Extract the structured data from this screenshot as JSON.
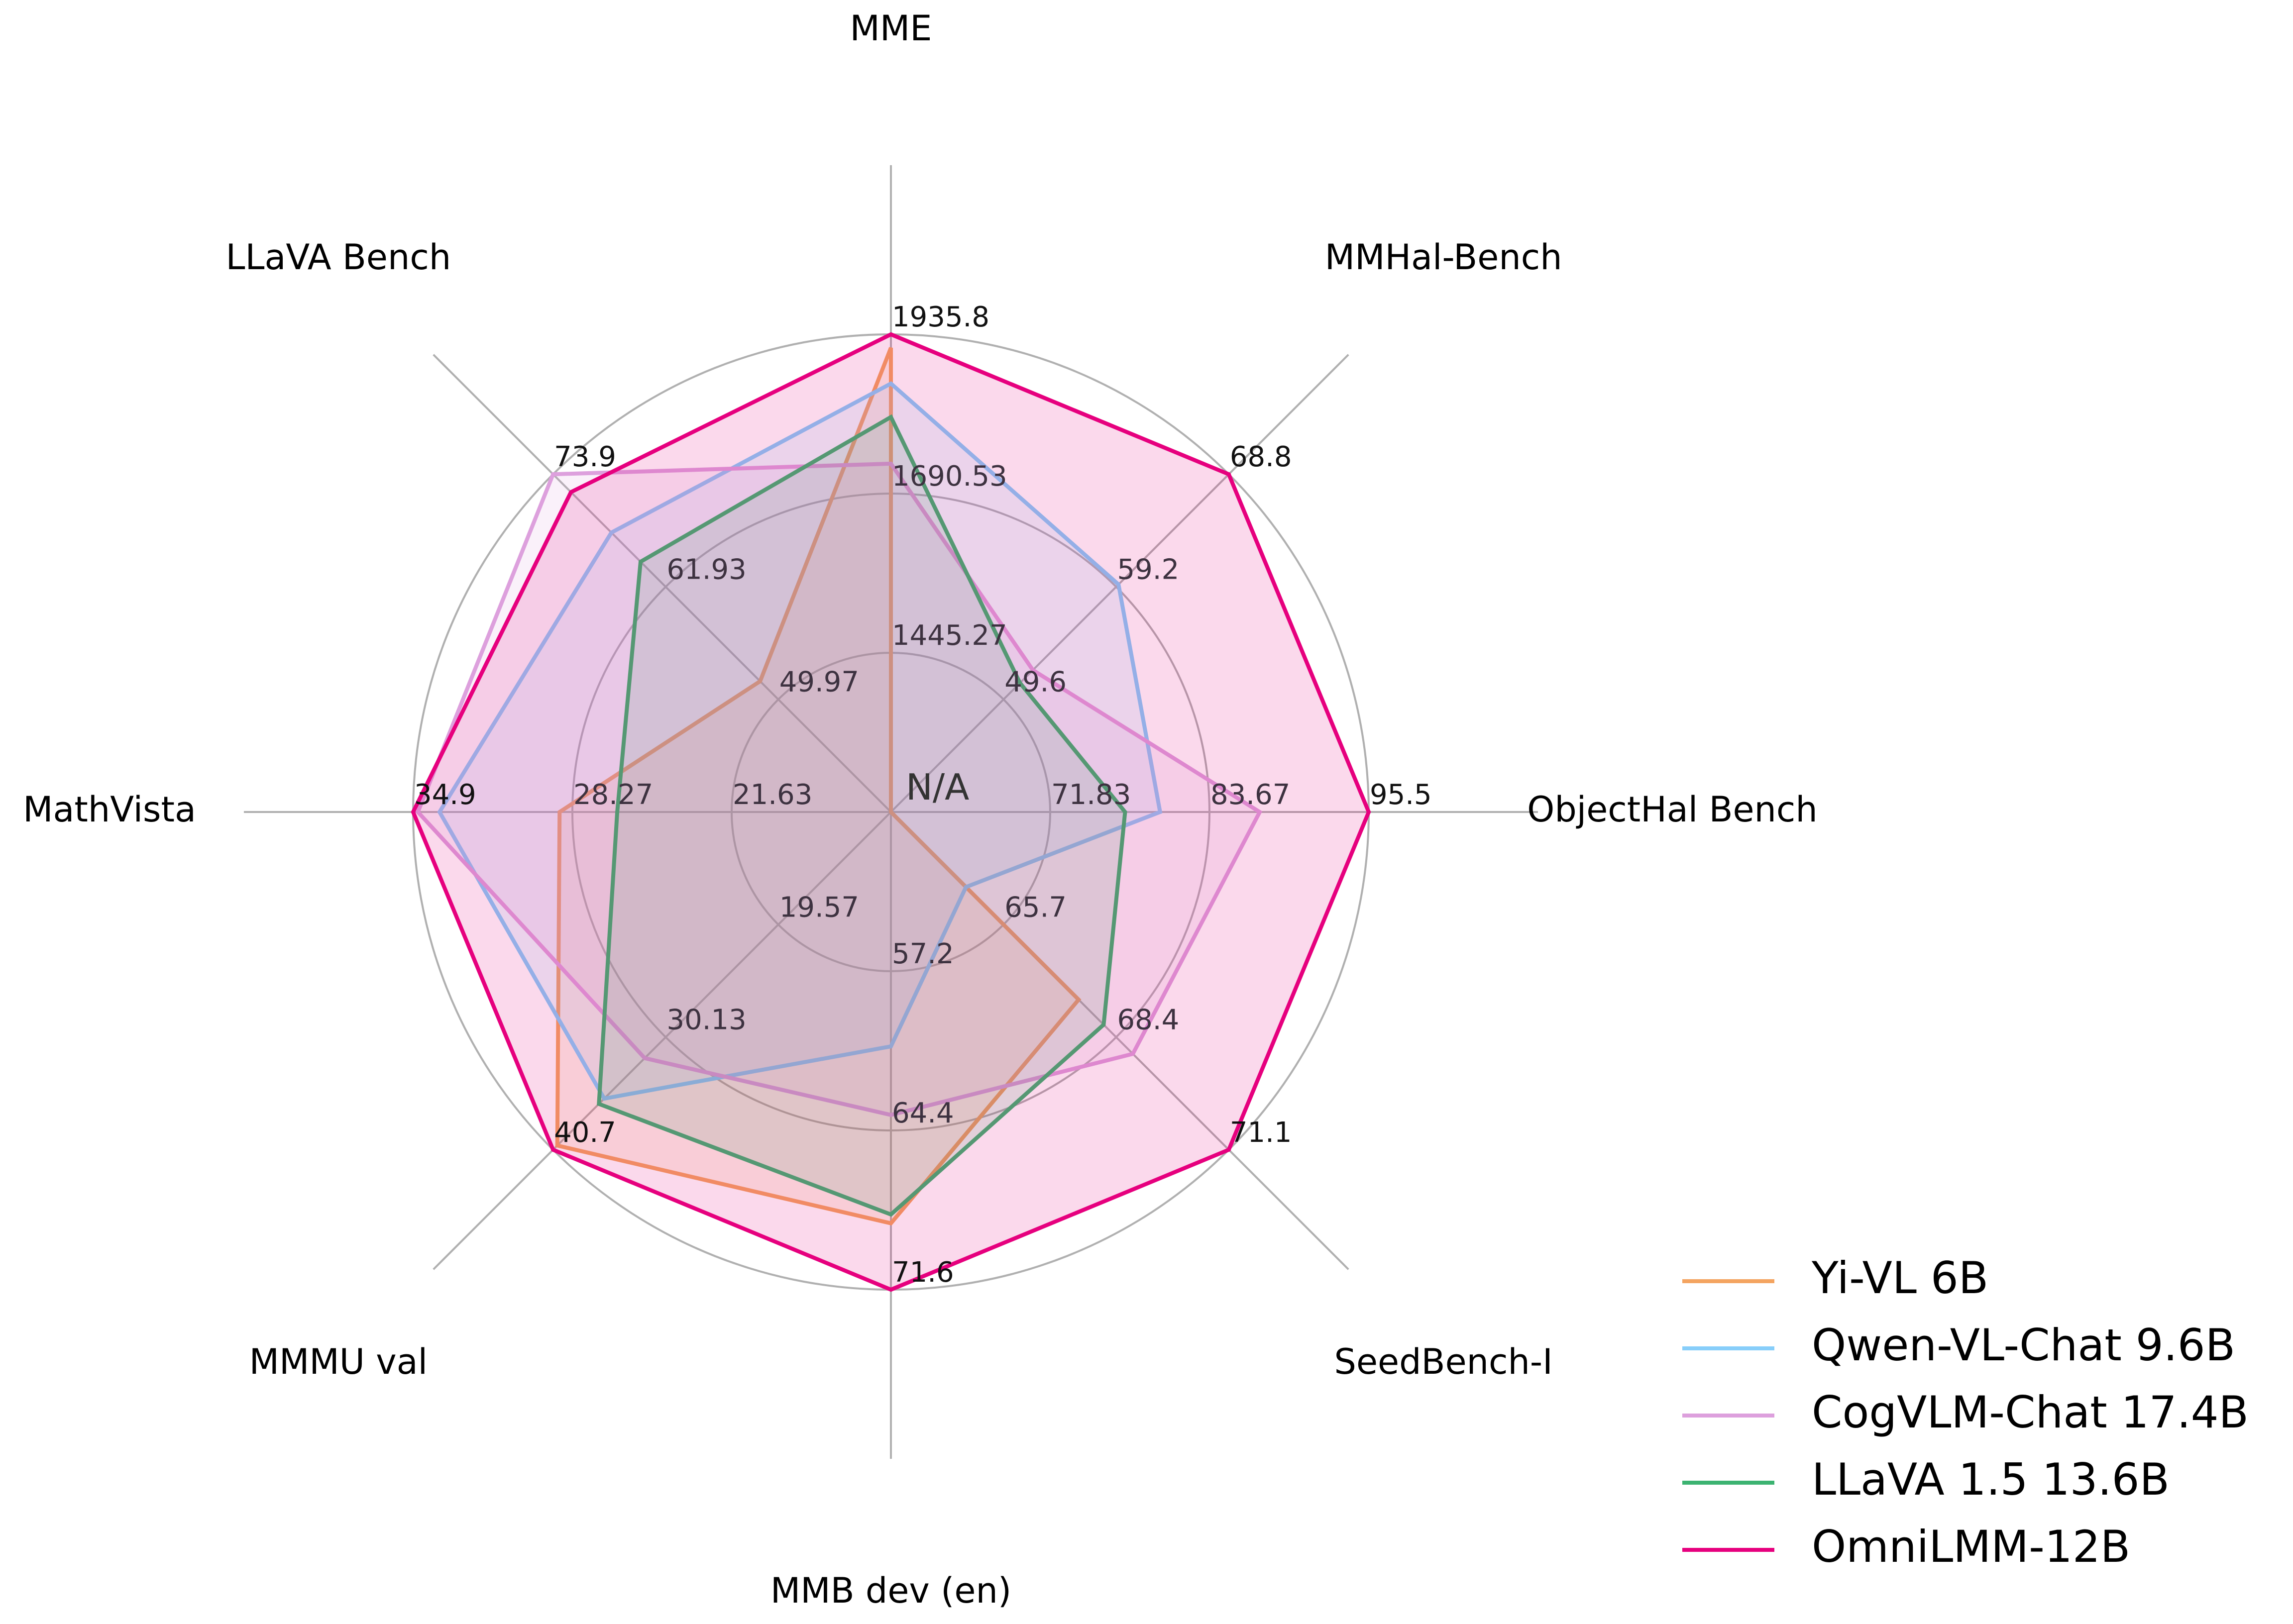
{
  "chart_data": {
    "type": "radar",
    "axes": [
      {
        "label": "MME",
        "ticks": [
          "1445.27",
          "1690.53",
          "1935.8"
        ],
        "min": 1200,
        "max": 1935.8
      },
      {
        "label": "MMHal-Bench",
        "ticks": [
          "49.6",
          "59.2",
          "68.8"
        ],
        "min": 40,
        "max": 68.8
      },
      {
        "label": "ObjectHal Bench",
        "ticks": [
          "71.83",
          "83.67",
          "95.5"
        ],
        "min": 60,
        "max": 95.5
      },
      {
        "label": "SeedBench-I",
        "ticks": [
          "65.7",
          "68.4",
          "71.1"
        ],
        "min": 63,
        "max": 71.1
      },
      {
        "label": "MMB dev (en)",
        "ticks": [
          "57.2",
          "64.4",
          "71.6"
        ],
        "min": 50,
        "max": 71.6
      },
      {
        "label": "MMMU val",
        "ticks": [
          "19.57",
          "30.13",
          "40.7"
        ],
        "min": 9,
        "max": 40.7
      },
      {
        "label": "MathVista",
        "ticks": [
          "21.63",
          "28.27",
          "34.9"
        ],
        "min": 15,
        "max": 34.9
      },
      {
        "label": "LLaVA Bench",
        "ticks": [
          "49.97",
          "61.93",
          "73.9"
        ],
        "min": 38,
        "max": 73.9
      }
    ],
    "center_label": "N/A",
    "series": [
      {
        "name": "Yi-VL 6B",
        "color": "#f4a460",
        "values": [
          1915.1,
          null,
          null,
          67.5,
          68.6,
          40.3,
          28.8,
          51.9
        ]
      },
      {
        "name": "Qwen-VL-Chat 9.6B",
        "color": "#87cefa",
        "values": [
          1860.0,
          59.4,
          80.0,
          64.8,
          60.6,
          35.9,
          33.8,
          67.7
        ]
      },
      {
        "name": "CogVLM-Chat 17.4B",
        "color": "#dda0dd",
        "values": [
          1736.6,
          52.1,
          87.4,
          68.8,
          63.7,
          32.1,
          34.7,
          73.9
        ]
      },
      {
        "name": "LLaVA 1.5 13.6B",
        "color": "#3cb371",
        "values": [
          1808.4,
          51.0,
          77.4,
          68.1,
          68.2,
          36.4,
          26.4,
          64.6
        ]
      },
      {
        "name": "OmniLMM-12B",
        "color": "#e6007e",
        "values": [
          1935.8,
          68.8,
          95.5,
          71.1,
          71.6,
          40.7,
          34.9,
          72.0
        ]
      }
    ],
    "grid": true,
    "legend": "bottom-right"
  }
}
